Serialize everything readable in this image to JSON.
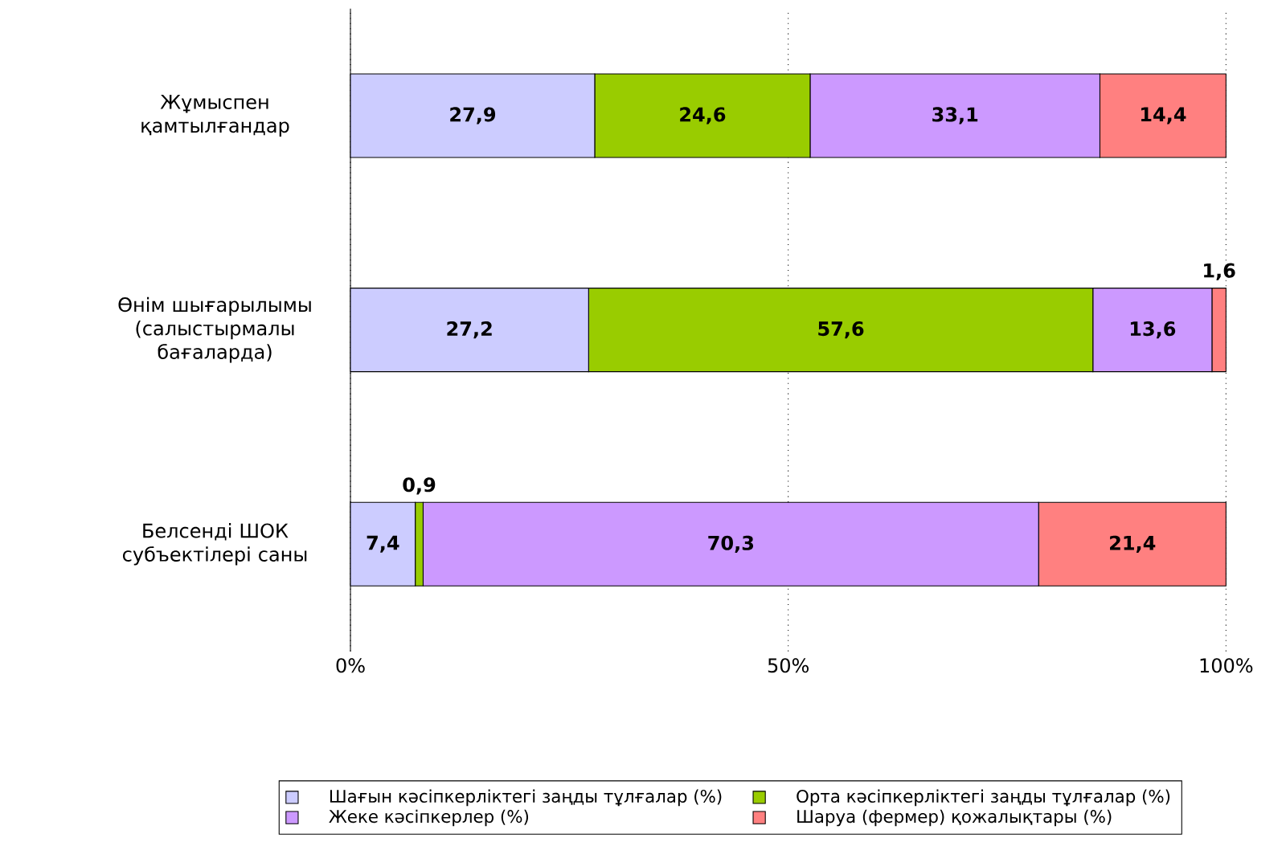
{
  "chart_data": {
    "type": "bar",
    "orientation": "horizontal",
    "stacked": true,
    "categories": [
      "Жұмыспен қамтылғандар",
      "Өнім шығарылымы (салыстырмалы бағаларда)",
      "Белсенді ШОК субъектілері саны"
    ],
    "series": [
      {
        "name": "Шағын кәсіпкерліктегі заңды тұлғалар (%)",
        "color": "#ccccff",
        "values": [
          27.9,
          27.2,
          7.4
        ],
        "value_labels": [
          "27,9",
          "27,2",
          "7,4"
        ]
      },
      {
        "name": "Орта кәсіпкерліктегі заңды тұлғалар (%)",
        "color": "#99cc00",
        "values": [
          24.6,
          57.6,
          0.9
        ],
        "value_labels": [
          "24,6",
          "57,6",
          "0,9"
        ]
      },
      {
        "name": "Жеке кәсіпкерлер (%)",
        "color": "#cc99ff",
        "values": [
          33.1,
          13.6,
          70.3
        ],
        "value_labels": [
          "33,1",
          "13,6",
          "70,3"
        ]
      },
      {
        "name": "Шаруа (фермер) қожалықтары (%)",
        "color": "#ff8080",
        "values": [
          14.4,
          1.6,
          21.4
        ],
        "value_labels": [
          "14,4",
          "1,6",
          "21,4"
        ]
      }
    ],
    "xlim": [
      0,
      100
    ],
    "xticks": [
      {
        "value": 0,
        "label": "0%"
      },
      {
        "value": 50,
        "label": "50%"
      },
      {
        "value": 100,
        "label": "100%"
      }
    ],
    "grid": "x",
    "legend": "bottom"
  }
}
